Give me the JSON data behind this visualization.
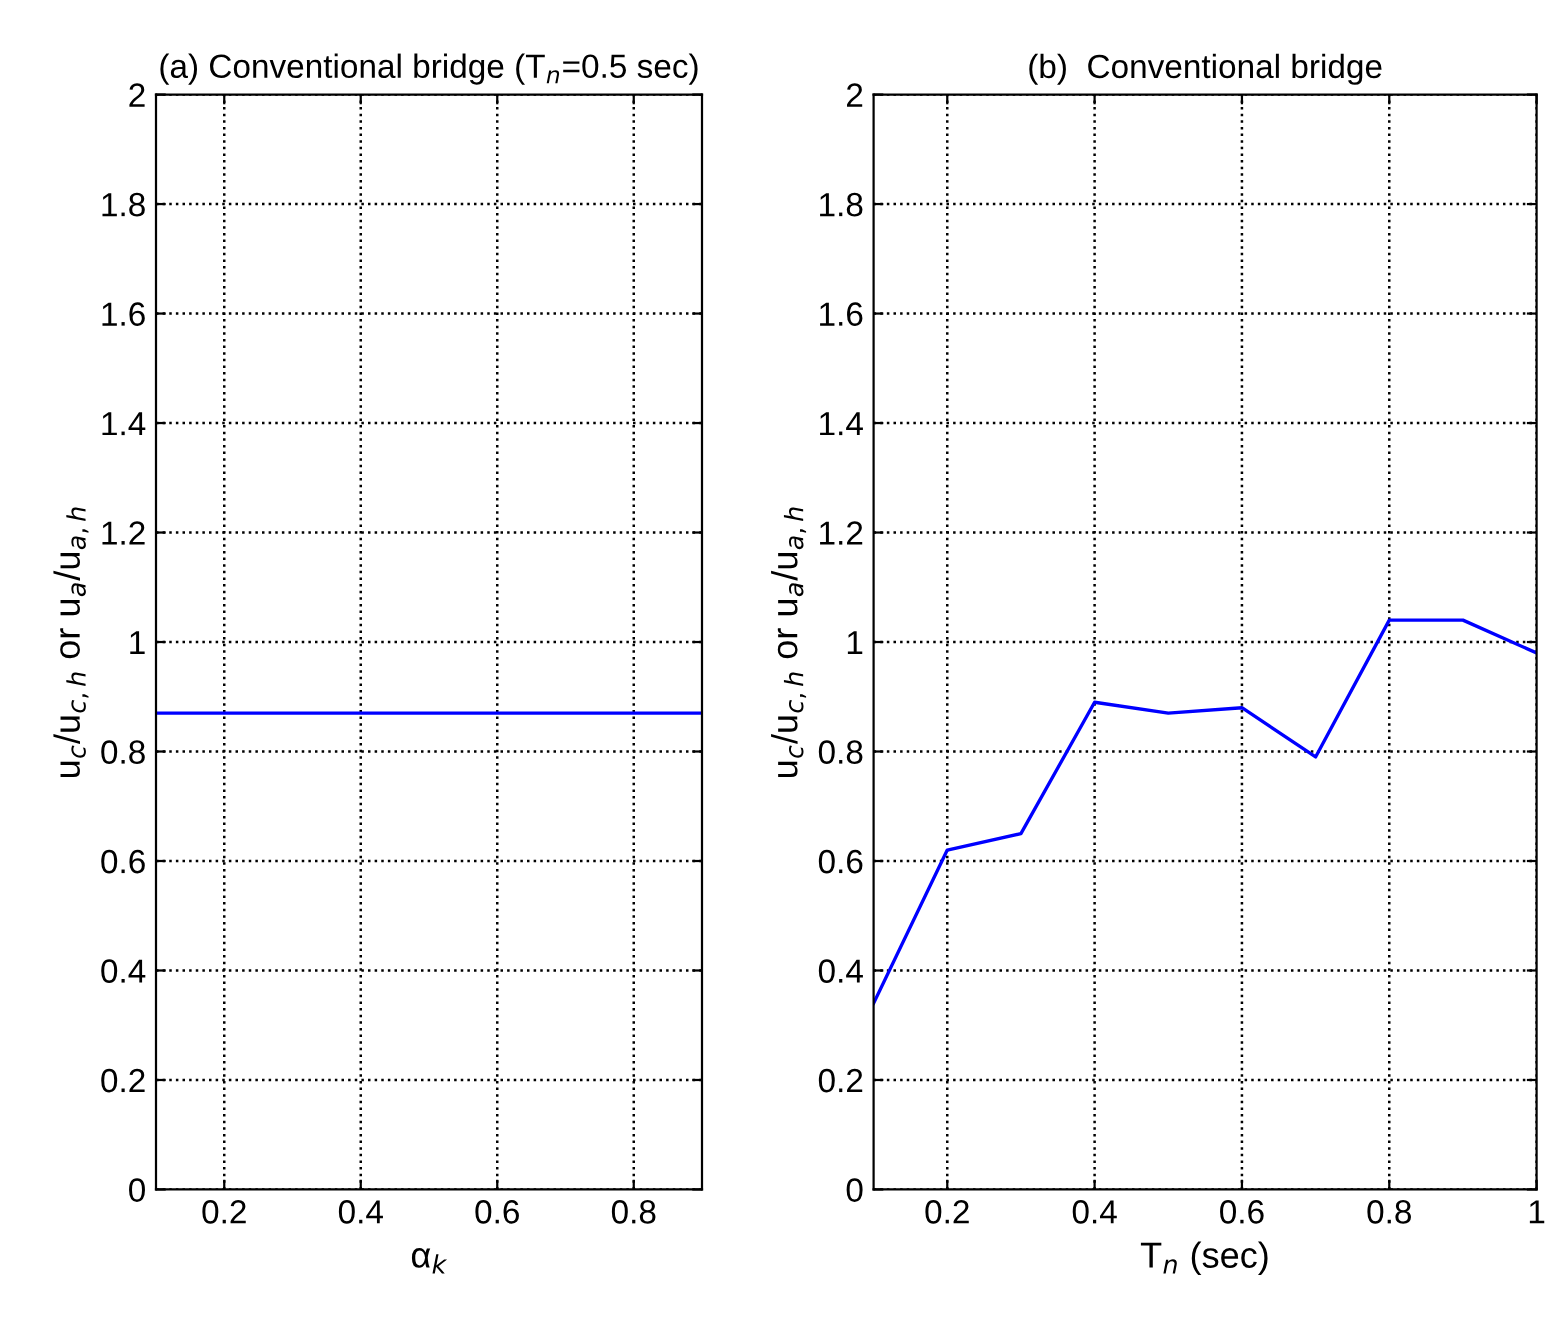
{
  "chart_data": [
    {
      "type": "line",
      "title": "(a) Conventional bridge (T$_{n}$=0.5 sec)",
      "xlabel": "α$_{k}$",
      "ylabel": "u$_{c}$/u$_{c,h}$ or u$_{a}$/u$_{a,h}$",
      "x": [
        0.1,
        0.9
      ],
      "series": [
        {
          "color": "#0000ff",
          "values": [
            0.87,
            0.87
          ]
        }
      ],
      "xlim": [
        0.1,
        0.9
      ],
      "xticks": [
        0.2,
        0.4,
        0.6,
        0.8
      ],
      "ylim": [
        0,
        2
      ],
      "yticks": [
        0,
        0.2,
        0.4,
        0.6,
        0.8,
        1,
        1.2,
        1.4,
        1.6,
        1.8,
        2
      ],
      "grid": true
    },
    {
      "type": "line",
      "title": "(b)  Conventional bridge",
      "xlabel": "T$_{n}$ (sec)",
      "ylabel": "u$_{c}$/u$_{c,h}$ or u$_{a}$/u$_{a,h}$",
      "x": [
        0.1,
        0.2,
        0.3,
        0.4,
        0.5,
        0.6,
        0.7,
        0.8,
        0.9,
        1.0
      ],
      "series": [
        {
          "color": "#0000ff",
          "values": [
            0.34,
            0.62,
            0.65,
            0.89,
            0.87,
            0.88,
            0.79,
            1.04,
            1.04,
            0.98
          ]
        }
      ],
      "xlim": [
        0.1,
        1
      ],
      "xticks": [
        0.2,
        0.4,
        0.6,
        0.8,
        1
      ],
      "ylim": [
        0,
        2
      ],
      "yticks": [
        0,
        0.2,
        0.4,
        0.6,
        0.8,
        1,
        1.2,
        1.4,
        1.6,
        1.8,
        2
      ],
      "grid": true
    }
  ]
}
